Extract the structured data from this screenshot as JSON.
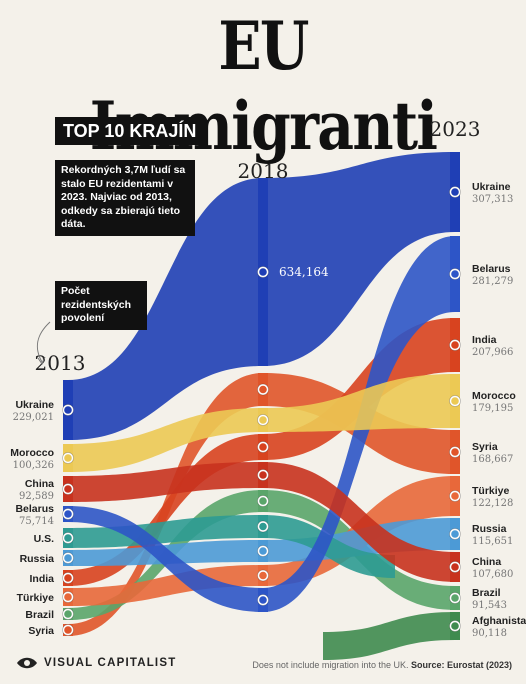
{
  "title": "EU Immigranti",
  "subtitle": "TOP 10 KRAJÍN",
  "note_record": "Rekordných 3,7M ľudí sa stalo EU rezidentami v 2023. Najviac od 2013, odkedy sa zbierajú tieto dáta.",
  "note_permits": "Počet rezidentských povolení",
  "footer": {
    "brand": "VISUAL CAPITALIST",
    "source_prefix": "Does not include migration into the UK. ",
    "source_label": "Source: Eurostat (2023)"
  },
  "chart_data": {
    "type": "bump",
    "years": [
      "2013",
      "2018",
      "2023"
    ],
    "ranking_2013": [
      {
        "country": "Ukraine",
        "value": 229021,
        "label": "229,021"
      },
      {
        "country": "Morocco",
        "value": 100326,
        "label": "100,326"
      },
      {
        "country": "China",
        "value": 92589,
        "label": "92,589"
      },
      {
        "country": "Belarus",
        "value": 75714,
        "label": "75,714"
      },
      {
        "country": "U.S.",
        "value": null,
        "label": ""
      },
      {
        "country": "Russia",
        "value": null,
        "label": ""
      },
      {
        "country": "India",
        "value": null,
        "label": ""
      },
      {
        "country": "Türkiye",
        "value": null,
        "label": ""
      },
      {
        "country": "Brazil",
        "value": null,
        "label": ""
      },
      {
        "country": "Syria",
        "value": null,
        "label": ""
      }
    ],
    "ranking_2018": [
      {
        "country": "Ukraine",
        "value": 634164,
        "label": "634,164"
      },
      {
        "country": "Syria",
        "value": null,
        "label": ""
      },
      {
        "country": "Morocco",
        "value": null,
        "label": ""
      },
      {
        "country": "India",
        "value": null,
        "label": ""
      },
      {
        "country": "China",
        "value": null,
        "label": ""
      },
      {
        "country": "Brazil",
        "value": null,
        "label": ""
      },
      {
        "country": "U.S.",
        "value": null,
        "label": ""
      },
      {
        "country": "Russia",
        "value": null,
        "label": ""
      },
      {
        "country": "Türkiye",
        "value": null,
        "label": ""
      },
      {
        "country": "Belarus",
        "value": null,
        "label": ""
      }
    ],
    "ranking_2023": [
      {
        "country": "Ukraine",
        "value": 307313,
        "label": "307,313"
      },
      {
        "country": "Belarus",
        "value": 281279,
        "label": "281,279"
      },
      {
        "country": "India",
        "value": 207966,
        "label": "207,966"
      },
      {
        "country": "Morocco",
        "value": 179195,
        "label": "179,195"
      },
      {
        "country": "Syria",
        "value": 168667,
        "label": "168,667"
      },
      {
        "country": "Türkiye",
        "value": 122128,
        "label": "122,128"
      },
      {
        "country": "Russia",
        "value": 115651,
        "label": "115,651"
      },
      {
        "country": "China",
        "value": 107680,
        "label": "107,680"
      },
      {
        "country": "Brazil",
        "value": 91543,
        "label": "91,543"
      },
      {
        "country": "Afghanistan",
        "value": 90118,
        "label": "90,118"
      }
    ],
    "colors": {
      "Ukraine": "#1f3fb5",
      "Belarus": "#2d55c7",
      "Morocco": "#ecc954",
      "China": "#c8321e",
      "India": "#d8431f",
      "Syria": "#e0552a",
      "Russia": "#4c9ad6",
      "U.S.": "#2e9b92",
      "Türkiye": "#e8683a",
      "Brazil": "#5aa56a",
      "Afghanistan": "#3f8b4f"
    }
  }
}
